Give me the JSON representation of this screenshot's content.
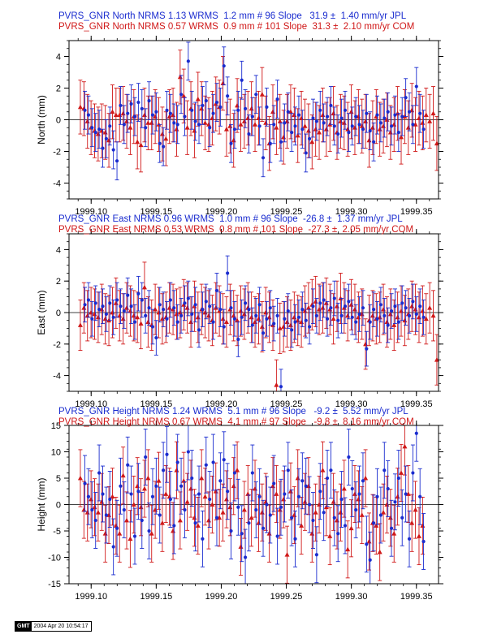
{
  "colors": {
    "jpl": "#1a2ccf",
    "com": "#d01818",
    "axis": "#000000"
  },
  "footer": {
    "logo": "GMT",
    "timestamp": "2004 Apr 20 10:54:17"
  },
  "xticks": [
    "1999.10",
    "1999.15",
    "1999.20",
    "1999.25",
    "1999.30",
    "1999.35"
  ],
  "chart_data": [
    {
      "type": "scatter",
      "component": "North",
      "ylabel": "North (mm)",
      "xlim": [
        1999.083,
        1999.367
      ],
      "ylim": [
        -5,
        5
      ],
      "yticks": [
        -4,
        -2,
        0,
        2,
        4
      ],
      "header_jpl": "PVRS_GNR North NRMS 1.13 WRMS  1.2 mm # 96 Slope   31.9 ±  1.40 mm/yr JPL",
      "header_com": "PVRS_GNR North NRMS 0.57 WRMS  0.9 mm # 101 Slope  31.3 ±  2.10 mm/yr COM",
      "series": [
        {
          "name": "JPL",
          "marker": "circle",
          "x_start": 1999.0952,
          "x_step": 0.00274,
          "err": 1.2,
          "values": [
            0.6,
            0.3,
            -0.5,
            -0.8,
            -0.6,
            -1.8,
            -1.2,
            -0.4,
            -1.9,
            -2.6,
            0.9,
            -0.3,
            0.4,
            1.0,
            0.2,
            1.1,
            0.7,
            -0.5,
            1.2,
            0.3,
            0.5,
            -1.5,
            -1.7,
            0.6,
            0.4,
            -0.2,
            -0.3,
            1.6,
            0.2,
            3.7,
            0.6,
            -0.1,
            -0.3,
            0.9,
            1.2,
            -0.5,
            0.4,
            1.1,
            0.8,
            3.4,
            1.5,
            -1.5,
            -0.6,
            0.6,
            2.5,
            0.7,
            -0.9,
            0.2,
            1.6,
            -0.4,
            -2.4,
            0.8,
            -1.5,
            -0.3,
            1.3,
            -1.4,
            -0.2,
            0.5,
            -0.8,
            -0.4,
            0.3,
            -0.6,
            -2.1,
            -1.2,
            0.1,
            -0.1,
            0.6,
            -0.2,
            0.2,
            0.9,
            -0.4,
            -0.9,
            0.1,
            0.6,
            -0.8,
            -0.4,
            0.2,
            -0.3,
            -0.6,
            0.4,
            -0.7,
            -1.4,
            0.3,
            -0.2,
            0.1,
            0.5,
            -0.4,
            0.3,
            -0.8,
            0.2,
            1.4,
            0.5,
            -0.3,
            2.1,
            0.4,
            -0.6
          ]
        },
        {
          "name": "COM",
          "marker": "triangle",
          "x_start": 1999.0917,
          "x_step": 0.00274,
          "err": 1.7,
          "values": [
            0.8,
            0.7,
            -0.1,
            -0.5,
            -0.7,
            -0.9,
            -0.7,
            -0.8,
            -1.3,
            0.5,
            0.3,
            0.3,
            0.4,
            -0.1,
            -0.5,
            0.2,
            -1.4,
            -1.6,
            0.3,
            -0.2,
            -0.2,
            0.2,
            -0.3,
            -0.9,
            -1.2,
            0.2,
            0.3,
            -0.6,
            2.7,
            1.5,
            -0.5,
            0.7,
            -0.7,
            1.3,
            0.7,
            -0.2,
            -0.3,
            0.1,
            1.0,
            0.8,
            2.3,
            -0.6,
            -0.4,
            -1.3,
            0.9,
            -0.3,
            -0.1,
            0.1,
            0.7,
            -0.3,
            0.1,
            1.6,
            -0.2,
            -1.5,
            0.5,
            -0.5,
            -0.1,
            -1.1,
            -0.1,
            0.5,
            0.3,
            -1.0,
            0.1,
            -0.4,
            -0.7,
            -1.4,
            -0.6,
            -0.8,
            0.3,
            -0.6,
            -0.3,
            0.4,
            -0.8,
            -0.1,
            -0.2,
            -0.6,
            0.5,
            -0.5,
            0.2,
            -0.4,
            -0.1,
            -1.3,
            -0.5,
            0.2,
            -0.6,
            -0.4,
            0.0,
            -0.8,
            -0.3,
            0.4,
            -1.1,
            0.2,
            -0.5,
            0.6,
            -0.3,
            0.1,
            -0.2,
            0.3,
            -0.1,
            0.4,
            -1.5
          ]
        }
      ]
    },
    {
      "type": "scatter",
      "component": "East",
      "ylabel": "East (mm)",
      "xlim": [
        1999.083,
        1999.367
      ],
      "ylim": [
        -5,
        5
      ],
      "yticks": [
        -4,
        -2,
        0,
        2,
        4
      ],
      "header_jpl": "PVRS_GNR East NRMS 0.96 WRMS  1.0 mm # 96 Slope  -26.8 ±  1.37 mm/yr JPL",
      "header_com": "PVRS_GNR East NRMS 0.53 WRMS  0.8 mm # 101 Slope  -27.3 ±  2.05 mm/yr COM",
      "series": [
        {
          "name": "JPL",
          "marker": "circle",
          "x_start": 1999.0952,
          "x_step": 0.00274,
          "err": 1.1,
          "values": [
            0.5,
            0.8,
            -0.4,
            0.6,
            0.2,
            0.4,
            -0.1,
            0.6,
            -0.3,
            0.8,
            0.4,
            0.1,
            1.1,
            0.4,
            -0.6,
            1.2,
            0.8,
            -0.2,
            0.3,
            -0.9,
            -1.6,
            0.5,
            0.2,
            -0.4,
            0.8,
            0.3,
            -0.6,
            -0.2,
            0.6,
            0.9,
            -0.1,
            0.5,
            -1.1,
            0.2,
            0.7,
            0.4,
            -0.6,
            1.4,
            0.2,
            -0.9,
            2.5,
            0.3,
            -0.4,
            -1.7,
            -0.3,
            0.6,
            0.2,
            -0.8,
            -0.2,
            0.5,
            -1.3,
            -0.4,
            0.3,
            -0.7,
            -0.2,
            -4.7,
            -0.4,
            0.1,
            -1.1,
            -0.6,
            -0.3,
            0.2,
            -0.5,
            -0.9,
            0.4,
            -0.2,
            0.6,
            0.8,
            -0.4,
            0.3,
            0.9,
            -0.5,
            -0.2,
            0.4,
            0.7,
            -0.3,
            -0.6,
            -0.1,
            0.3,
            -2.3,
            -0.6,
            0.2,
            -0.4,
            0.5,
            -0.2,
            -0.8,
            0.1,
            0.4,
            -0.6,
            0.6,
            0.3,
            -0.2,
            0.7,
            -0.1,
            0.4,
            -0.3
          ]
        },
        {
          "name": "COM",
          "marker": "triangle",
          "x_start": 1999.0917,
          "x_step": 0.00274,
          "err": 1.6,
          "values": [
            -0.8,
            0.3,
            -0.2,
            0.0,
            -0.1,
            -0.3,
            0.2,
            -0.4,
            -0.5,
            0.0,
            0.6,
            -0.2,
            -0.4,
            0.3,
            0.1,
            -0.2,
            -0.3,
            -0.7,
            1.6,
            -0.6,
            -0.8,
            0.2,
            0.0,
            -0.4,
            -0.3,
            0.3,
            0.2,
            -0.1,
            0.0,
            0.5,
            0.3,
            -0.6,
            0.4,
            -0.3,
            0.2,
            0.0,
            -0.2,
            -0.5,
            0.3,
            0.1,
            -0.4,
            -0.6,
            0.2,
            -0.2,
            -0.5,
            0.1,
            -0.1,
            0.3,
            -0.3,
            -0.6,
            -0.4,
            -0.9,
            0.0,
            -0.3,
            -0.8,
            -4.6,
            -1.0,
            -0.9,
            -0.6,
            -0.8,
            -0.3,
            -0.5,
            -0.6,
            0.1,
            0.3,
            0.5,
            0.7,
            0.2,
            0.3,
            0.6,
            0.2,
            -0.4,
            0.4,
            0.9,
            0.3,
            -0.2,
            0.5,
            0.2,
            -0.3,
            -0.1,
            -2.0,
            -0.5,
            -0.2,
            -0.4,
            -0.3,
            0.2,
            -0.6,
            -0.1,
            -0.8,
            -0.3,
            0.1,
            -0.5,
            -0.1,
            0.4,
            0.2,
            -0.3,
            0.1,
            -0.4,
            0.3,
            -0.2,
            -3.0
          ]
        }
      ]
    },
    {
      "type": "scatter",
      "component": "Height",
      "ylabel": "Height (mm)",
      "xlim": [
        1999.083,
        1999.367
      ],
      "ylim": [
        -15,
        15
      ],
      "yticks": [
        -15,
        -10,
        -5,
        0,
        5,
        10,
        15
      ],
      "header_jpl": "PVRS_GNR Height NRMS 1.24 WRMS  5.1 mm # 96 Slope   -9.2 ±  5.52 mm/yr JPL",
      "header_com": "PVRS_GNR Height NRMS 0.67 WRMS  4.1 mm # 97 Slope   -9.8 ±  8.16 mm/yr COM",
      "series": [
        {
          "name": "JPL",
          "marker": "circle",
          "x_start": 1999.0952,
          "x_step": 0.00274,
          "err": 5.3,
          "values": [
            4.0,
            1.5,
            -1.0,
            -3.0,
            6.0,
            2.0,
            -2.0,
            1.0,
            -8.0,
            -4.5,
            3.5,
            -1.0,
            7.5,
            2.0,
            -6.0,
            2.5,
            -3.0,
            9.0,
            -5.0,
            1.5,
            3.5,
            -2.0,
            6.5,
            9.5,
            1.0,
            -4.0,
            8.0,
            3.5,
            -1.0,
            10.0,
            5.0,
            -3.5,
            2.0,
            -6.5,
            7.5,
            1.0,
            8.0,
            -2.5,
            4.5,
            8.5,
            2.5,
            -5.0,
            6.0,
            -0.5,
            -5.5,
            -10.0,
            -3.5,
            6.0,
            -1.0,
            1.5,
            -4.5,
            0.0,
            -2.0,
            4.0,
            -6.0,
            -0.5,
            2.0,
            6.5,
            -2.5,
            -6.5,
            1.5,
            4.5,
            3.5,
            0.0,
            -3.0,
            -9.5,
            2.5,
            -1.5,
            5.0,
            6.5,
            -2.5,
            -5.5,
            1.0,
            -4.0,
            9.0,
            3.0,
            -1.0,
            2.0,
            4.5,
            -7.5,
            -10.5,
            -3.5,
            1.5,
            -2.0,
            6.5,
            3.0,
            -4.5,
            0.5,
            5.0,
            -2.5,
            2.0,
            -6.5,
            6.0,
            13.5,
            1.5,
            -7.0
          ]
        },
        {
          "name": "COM",
          "marker": "triangle",
          "x_start": 1999.0917,
          "x_step": 0.00274,
          "err": 5.4,
          "values": [
            5.0,
            -1.0,
            -1.5,
            1.0,
            -0.5,
            -1.5,
            0.5,
            -5.5,
            -2.0,
            1.5,
            -4.0,
            -5.5,
            5.5,
            -3.0,
            -6.5,
            0.0,
            3.5,
            -0.5,
            3.0,
            5.0,
            -5.5,
            -1.0,
            4.5,
            -3.5,
            2.0,
            1.5,
            -5.0,
            6.5,
            -3.0,
            4.5,
            0.5,
            3.0,
            -2.5,
            -4.0,
            5.0,
            1.5,
            -3.0,
            0.0,
            2.5,
            -2.5,
            -1.5,
            1.0,
            -0.5,
            3.5,
            6.5,
            -8.0,
            -1.0,
            2.0,
            -2.5,
            3.0,
            -3.5,
            -1.5,
            0.5,
            -5.5,
            3.5,
            2.0,
            -1.0,
            1.0,
            -9.5,
            2.5,
            -2.0,
            5.0,
            -4.0,
            0.5,
            3.5,
            -5.5,
            -1.5,
            0.0,
            6.5,
            -0.5,
            -6.0,
            0.5,
            -3.0,
            -1.5,
            3.0,
            -8.5,
            -4.5,
            2.0,
            1.0,
            -2.0,
            5.0,
            -7.0,
            -3.5,
            -4.0,
            -9.0,
            -1.5,
            0.0,
            -2.5,
            -5.5,
            1.5,
            6.0,
            11.0,
            2.0,
            -3.5,
            -1.0,
            -6.0,
            -4.0
          ]
        }
      ]
    }
  ]
}
